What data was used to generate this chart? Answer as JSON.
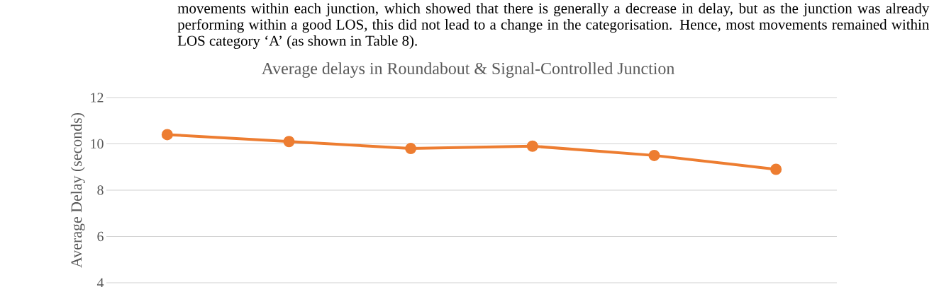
{
  "chart_data": {
    "type": "line",
    "title": "Average delays in Roundabout & Signal-Controlled Junction",
    "ylabel": "Average Delay (seconds)",
    "annotations": [
      "movements within each junction, which showed that there is generally a decrease in delay, but as the junction was already performing within a good LOS, this did not lead to a change in the categorisation. Hence, most movements remained within LOS category ‘A’ (as shown in Table 8)."
    ],
    "categories": [
      null,
      null,
      null,
      null,
      null,
      null
    ],
    "series": [
      {
        "color": "#ed7d31",
        "values": [
          10.4,
          10.1,
          9.8,
          9.9,
          9.5,
          8.9
        ]
      }
    ],
    "ylim": [
      4,
      12
    ],
    "yticks": [
      4,
      6,
      8,
      10,
      12
    ],
    "grid": "y",
    "marker": "circle",
    "tick_labels": "y"
  }
}
